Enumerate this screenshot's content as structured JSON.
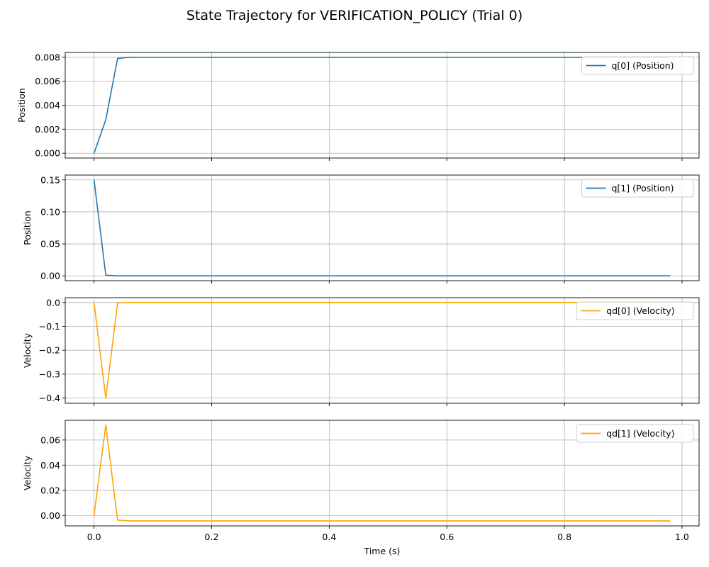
{
  "figure": {
    "title": "State Trajectory for VERIFICATION_POLICY (Trial 0)",
    "xlabel": "Time (s)"
  },
  "chart_data": [
    {
      "type": "line",
      "ylabel": "Position",
      "xlim": [
        -0.049,
        1.029
      ],
      "ylim": [
        -0.0004,
        0.0084
      ],
      "yticks": [
        0.0,
        0.002,
        0.004,
        0.006,
        0.008
      ],
      "yticklabels": [
        "0.000",
        "0.002",
        "0.004",
        "0.006",
        "0.008"
      ],
      "xticks": [
        0.0,
        0.2,
        0.4,
        0.6,
        0.8,
        1.0
      ],
      "xticklabels": [],
      "grid": true,
      "legend_loc": "upper right",
      "series": [
        {
          "name": "q[0] (Position)",
          "color": "#1f77b4",
          "x": [
            0.0,
            0.02,
            0.04,
            0.06,
            0.98
          ],
          "y": [
            0.0,
            0.0028,
            0.0079,
            0.008,
            0.008
          ]
        }
      ]
    },
    {
      "type": "line",
      "ylabel": "Position",
      "xlim": [
        -0.049,
        1.029
      ],
      "ylim": [
        -0.0075,
        0.1575
      ],
      "yticks": [
        0.0,
        0.05,
        0.1,
        0.15
      ],
      "yticklabels": [
        "0.00",
        "0.05",
        "0.10",
        "0.15"
      ],
      "xticks": [
        0.0,
        0.2,
        0.4,
        0.6,
        0.8,
        1.0
      ],
      "xticklabels": [],
      "grid": true,
      "legend_loc": "upper right",
      "series": [
        {
          "name": "q[1] (Position)",
          "color": "#1f77b4",
          "x": [
            0.0,
            0.02,
            0.04,
            0.98
          ],
          "y": [
            0.15,
            0.001,
            0.0,
            0.0
          ]
        }
      ]
    },
    {
      "type": "line",
      "ylabel": "Velocity",
      "xlim": [
        -0.049,
        1.029
      ],
      "ylim": [
        -0.4222,
        0.0202
      ],
      "yticks": [
        0.0,
        -0.1,
        -0.2,
        -0.3,
        -0.4
      ],
      "yticklabels": [
        "0.0",
        "−0.1",
        "−0.2",
        "−0.3",
        "−0.4"
      ],
      "xticks": [
        0.0,
        0.2,
        0.4,
        0.6,
        0.8,
        1.0
      ],
      "xticklabels": [],
      "grid": true,
      "legend_loc": "upper right",
      "series": [
        {
          "name": "qd[0] (Velocity)",
          "color": "#ffa500",
          "x": [
            0.0,
            0.02,
            0.04,
            0.06,
            0.98
          ],
          "y": [
            0.0,
            -0.402,
            -0.002,
            0.0,
            0.0
          ]
        }
      ]
    },
    {
      "type": "line",
      "ylabel": "Velocity",
      "xlim": [
        -0.049,
        1.029
      ],
      "ylim": [
        -0.0083,
        0.0757
      ],
      "yticks": [
        0.0,
        0.02,
        0.04,
        0.06
      ],
      "yticklabels": [
        "0.00",
        "0.02",
        "0.04",
        "0.06"
      ],
      "xticks": [
        0.0,
        0.2,
        0.4,
        0.6,
        0.8,
        1.0
      ],
      "xticklabels": [
        "0.0",
        "0.2",
        "0.4",
        "0.6",
        "0.8",
        "1.0"
      ],
      "grid": true,
      "legend_loc": "upper right",
      "series": [
        {
          "name": "qd[1] (Velocity)",
          "color": "#ffa500",
          "x": [
            0.0,
            0.02,
            0.04,
            0.06,
            0.98
          ],
          "y": [
            0.0,
            0.072,
            -0.0037,
            -0.0043,
            -0.0043
          ]
        }
      ]
    }
  ]
}
